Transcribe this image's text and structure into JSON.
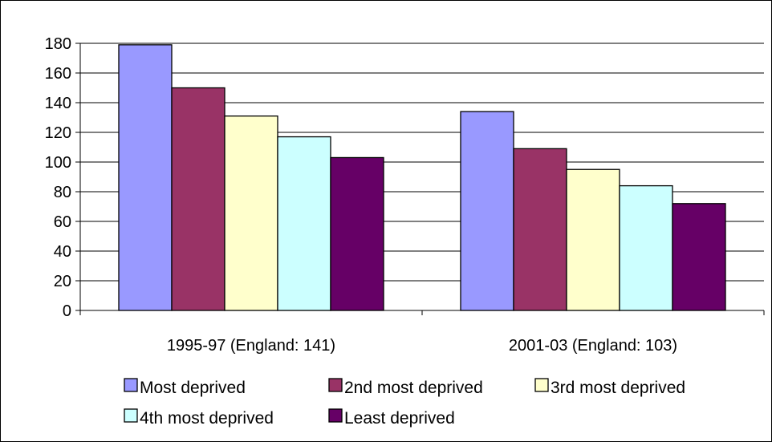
{
  "chart_data": {
    "type": "bar",
    "title": "",
    "xlabel": "",
    "ylabel": "",
    "categories": [
      "1995-97 (England: 141)",
      "2001-03 (England: 103)"
    ],
    "ylim": [
      0,
      180
    ],
    "yticks": [
      0,
      20,
      40,
      60,
      80,
      100,
      120,
      140,
      160,
      180
    ],
    "grid": true,
    "legend_position": "bottom",
    "series": [
      {
        "name": "Most deprived",
        "color": "#9999FF",
        "values": [
          179,
          134
        ]
      },
      {
        "name": "2nd most deprived",
        "color": "#993366",
        "values": [
          150,
          109
        ]
      },
      {
        "name": "3rd most deprived",
        "color": "#FFFFCC",
        "values": [
          131,
          95
        ]
      },
      {
        "name": "4th most deprived",
        "color": "#CCFFFF",
        "values": [
          117,
          84
        ]
      },
      {
        "name": "Least deprived",
        "color": "#660066",
        "values": [
          103,
          72
        ]
      }
    ]
  }
}
